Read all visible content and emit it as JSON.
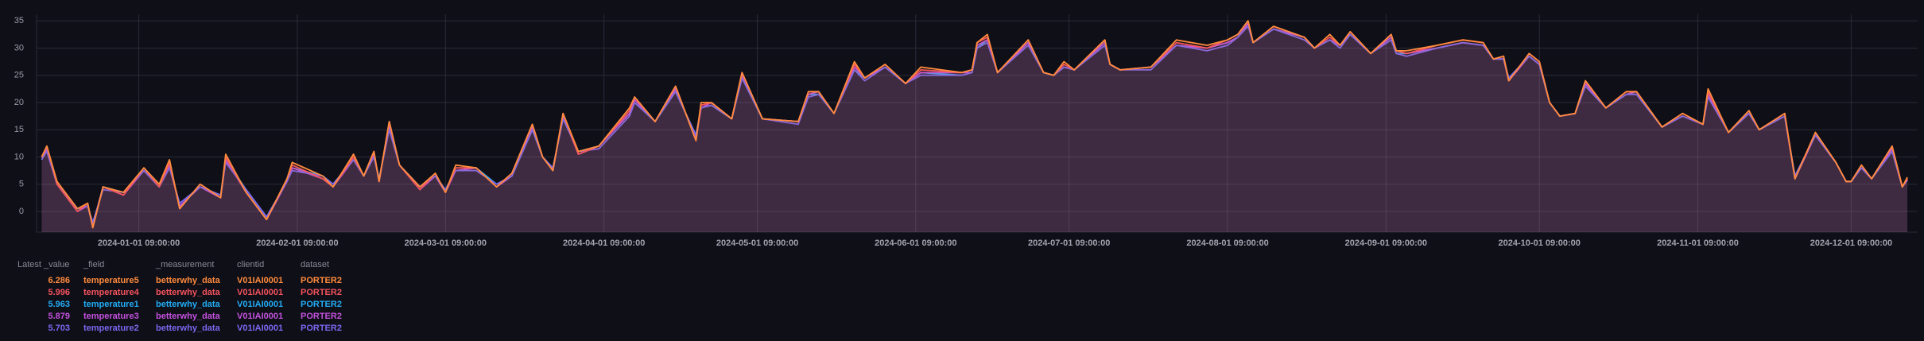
{
  "chart_data": {
    "type": "line",
    "x": [
      "2023-12-13 09:00:00",
      "2023-12-14 09:00:00",
      "2023-12-16 09:00:00",
      "2023-12-20 09:00:00",
      "2023-12-22 09:00:00",
      "2023-12-23 09:00:00",
      "2023-12-25 09:00:00",
      "2023-12-29 09:00:00",
      "2024-01-02 09:00:00",
      "2024-01-05 09:00:00",
      "2024-01-07 09:00:00",
      "2024-01-09 09:00:00",
      "2024-01-13 09:00:00",
      "2024-01-17 09:00:00",
      "2024-01-18 09:00:00",
      "2024-01-22 09:00:00",
      "2024-01-26 09:00:00",
      "2024-01-30 09:00:00",
      "2024-01-31 09:00:00",
      "2024-02-06 09:00:00",
      "2024-02-08 09:00:00",
      "2024-02-12 09:00:00",
      "2024-02-14 09:00:00",
      "2024-02-16 09:00:00",
      "2024-02-17 09:00:00",
      "2024-02-19 09:00:00",
      "2024-02-21 09:00:00",
      "2024-02-25 09:00:00",
      "2024-02-28 09:00:00",
      "2024-03-01 09:00:00",
      "2024-03-03 09:00:00",
      "2024-03-07 09:00:00",
      "2024-03-11 09:00:00",
      "2024-03-14 09:00:00",
      "2024-03-18 09:00:00",
      "2024-03-20 09:00:00",
      "2024-03-22 09:00:00",
      "2024-03-24 09:00:00",
      "2024-03-27 09:00:00",
      "2024-03-31 09:00:00",
      "2024-04-06 09:00:00",
      "2024-04-07 09:00:00",
      "2024-04-11 09:00:00",
      "2024-04-15 09:00:00",
      "2024-04-19 09:00:00",
      "2024-04-20 09:00:00",
      "2024-04-22 09:00:00",
      "2024-04-26 09:00:00",
      "2024-04-28 09:00:00",
      "2024-05-02 09:00:00",
      "2024-05-09 09:00:00",
      "2024-05-11 09:00:00",
      "2024-05-13 09:00:00",
      "2024-05-16 09:00:00",
      "2024-05-20 09:00:00",
      "2024-05-22 09:00:00",
      "2024-05-26 09:00:00",
      "2024-05-30 09:00:00",
      "2024-06-02 09:00:00",
      "2024-06-10 09:00:00",
      "2024-06-12 09:00:00",
      "2024-06-13 09:00:00",
      "2024-06-15 09:00:00",
      "2024-06-17 09:00:00",
      "2024-06-23 09:00:00",
      "2024-06-26 09:00:00",
      "2024-06-28 09:00:00",
      "2024-06-30 09:00:00",
      "2024-07-02 09:00:00",
      "2024-07-08 09:00:00",
      "2024-07-09 09:00:00",
      "2024-07-11 09:00:00",
      "2024-07-17 09:00:00",
      "2024-07-22 09:00:00",
      "2024-07-28 09:00:00",
      "2024-08-01 09:00:00",
      "2024-08-03 09:00:00",
      "2024-08-05 09:00:00",
      "2024-08-06 09:00:00",
      "2024-08-10 09:00:00",
      "2024-08-16 09:00:00",
      "2024-08-18 09:00:00",
      "2024-08-21 09:00:00",
      "2024-08-23 09:00:00",
      "2024-08-25 09:00:00",
      "2024-08-29 09:00:00",
      "2024-09-02 09:00:00",
      "2024-09-03 09:00:00",
      "2024-09-05 09:00:00",
      "2024-09-11 09:00:00",
      "2024-09-16 09:00:00",
      "2024-09-20 09:00:00",
      "2024-09-22 09:00:00",
      "2024-09-24 09:00:00",
      "2024-09-25 09:00:00",
      "2024-09-29 09:00:00",
      "2024-10-01 09:00:00",
      "2024-10-03 09:00:00",
      "2024-10-05 09:00:00",
      "2024-10-08 09:00:00",
      "2024-10-10 09:00:00",
      "2024-10-14 09:00:00",
      "2024-10-18 09:00:00",
      "2024-10-20 09:00:00",
      "2024-10-25 09:00:00",
      "2024-10-29 09:00:00",
      "2024-11-02 09:00:00",
      "2024-11-03 09:00:00",
      "2024-11-07 09:00:00",
      "2024-11-11 09:00:00",
      "2024-11-13 09:00:00",
      "2024-11-18 09:00:00",
      "2024-11-20 09:00:00",
      "2024-11-24 09:00:00",
      "2024-11-28 09:00:00",
      "2024-11-30 09:00:00",
      "2024-12-01 09:00:00",
      "2024-12-03 09:00:00",
      "2024-12-05 09:00:00",
      "2024-12-09 09:00:00",
      "2024-12-11 09:00:00",
      "2024-12-12 09:00:00"
    ],
    "series": [
      {
        "name": "temperature5",
        "color": "#ff8b3d",
        "values": [
          10,
          12,
          5.5,
          0.5,
          1.5,
          -3,
          4.5,
          3.5,
          8,
          5,
          9.5,
          0.5,
          5,
          2.5,
          10.5,
          3.5,
          -1.5,
          6,
          9,
          6.5,
          4.5,
          10.5,
          6.5,
          11,
          5.5,
          16.5,
          8.5,
          4.5,
          7,
          3.5,
          8.5,
          8,
          4.5,
          7,
          16,
          10,
          7.5,
          18,
          11,
          12,
          19,
          21,
          16.5,
          23,
          13,
          20,
          20,
          17,
          25.5,
          17,
          16.5,
          22,
          22,
          18,
          27.5,
          24.5,
          27,
          23.5,
          26.5,
          25.5,
          26,
          31,
          32.5,
          25.5,
          31.5,
          25.5,
          25,
          27.5,
          26,
          31.5,
          27,
          26,
          26.5,
          31.5,
          30.5,
          31.5,
          32.5,
          35,
          31,
          34,
          32,
          30,
          32.5,
          30.5,
          33,
          29,
          32.5,
          29.5,
          29.5,
          30.5,
          31.5,
          31,
          28,
          28.5,
          24,
          29,
          27.5,
          20,
          17.5,
          18,
          24,
          19,
          22,
          22,
          15.5,
          18,
          16,
          22.5,
          14.5,
          18.5,
          15,
          18,
          6,
          14.5,
          9,
          5.5,
          5.5,
          8.5,
          6,
          12,
          4.5,
          6.286
        ]
      },
      {
        "name": "temperature4",
        "color": "#f4525d",
        "values": [
          10,
          12,
          5,
          0,
          1.5,
          -3,
          4.5,
          3,
          8,
          4.5,
          9,
          0.5,
          5,
          2.5,
          10,
          3.5,
          -1.5,
          6,
          8.5,
          6,
          4.5,
          10,
          6.5,
          11,
          5.5,
          16.5,
          8.5,
          4,
          7,
          3.5,
          8,
          8,
          4.5,
          7,
          16,
          10,
          7.5,
          18,
          10.5,
          12,
          18.5,
          21,
          16.5,
          23,
          13,
          19.5,
          20,
          17,
          25.5,
          17,
          16.5,
          22,
          22,
          18,
          27,
          24.5,
          27,
          23.5,
          26,
          25.5,
          26,
          31,
          32,
          25.5,
          31.5,
          25.5,
          25,
          27,
          26,
          31.5,
          27,
          26,
          26.5,
          31,
          30,
          31.5,
          32.5,
          35,
          31,
          34,
          32,
          30,
          32,
          30.5,
          33,
          29,
          32.5,
          29.5,
          29,
          30.5,
          31.5,
          31,
          28,
          28.5,
          24,
          29,
          27.5,
          20,
          17.5,
          18,
          24,
          19,
          22,
          22,
          15.5,
          18,
          16,
          22,
          14.5,
          18.5,
          15,
          18,
          6,
          14.5,
          9,
          5.5,
          5.5,
          8.5,
          6,
          12,
          4.5,
          5.996
        ]
      },
      {
        "name": "temperature1",
        "color": "#22adf6",
        "values": [
          9.5,
          11.5,
          5,
          0.5,
          1,
          -2.5,
          4.5,
          3.5,
          7.5,
          4.5,
          8.5,
          1,
          4.5,
          3,
          9.5,
          4,
          -1,
          5.5,
          8,
          6.5,
          5,
          9.5,
          6.5,
          10.5,
          6,
          15.5,
          8.5,
          4.5,
          6.5,
          4,
          7.5,
          8,
          5,
          6.5,
          15,
          10,
          8,
          17,
          11,
          12,
          18,
          20,
          16.5,
          22,
          14,
          19,
          19.5,
          17,
          24.5,
          17,
          16.5,
          21.5,
          21.5,
          18,
          26,
          24.5,
          26.5,
          23.5,
          25.5,
          25,
          25.5,
          30,
          31.5,
          25.5,
          31,
          25.5,
          25,
          26.5,
          26,
          31,
          27,
          26,
          26.5,
          30.5,
          30,
          31,
          32,
          34.5,
          31,
          33.5,
          32,
          30,
          31.5,
          30.5,
          32.5,
          29,
          32,
          29,
          29,
          30,
          31,
          30.5,
          28,
          28,
          24.5,
          28.5,
          27,
          20,
          17.5,
          18,
          23.5,
          19,
          21.5,
          21.5,
          15.5,
          17.5,
          16,
          21.5,
          14.5,
          18,
          15,
          17.5,
          6.5,
          14,
          9,
          5.5,
          5.5,
          8,
          6,
          11.5,
          4.5,
          5.963
        ]
      },
      {
        "name": "temperature3",
        "color": "#c452e0",
        "values": [
          10,
          11.5,
          5,
          0,
          1,
          -2.5,
          4.5,
          3,
          7.5,
          4.5,
          8.5,
          1,
          4.5,
          2.5,
          9.5,
          3.5,
          -1.5,
          5.5,
          8,
          6,
          4.5,
          9.5,
          6.5,
          10.5,
          5.5,
          16,
          8.5,
          4,
          6.5,
          3.5,
          7.5,
          8,
          4.5,
          6.5,
          15.5,
          10,
          7.5,
          17.5,
          10.5,
          12,
          18,
          20.5,
          16.5,
          22.5,
          13.5,
          19,
          20,
          17,
          25,
          17,
          16.5,
          21.5,
          22,
          18,
          26.5,
          24.5,
          26.5,
          23.5,
          25.5,
          25.5,
          25.5,
          30.5,
          31.5,
          25.5,
          31,
          25.5,
          25,
          26.5,
          26,
          31,
          27,
          26,
          26.5,
          30.5,
          30,
          31,
          32,
          34.5,
          31,
          33.5,
          32,
          30,
          31.5,
          30.5,
          32.5,
          29,
          32,
          29.5,
          29,
          30,
          31,
          30.5,
          28,
          28,
          24,
          28.5,
          27,
          20,
          17.5,
          18,
          23.5,
          19,
          21.5,
          22,
          15.5,
          17.5,
          16,
          21.5,
          14.5,
          18,
          15,
          17.5,
          6,
          14,
          9,
          5.5,
          5.5,
          8,
          6,
          11.5,
          4.5,
          5.879
        ]
      },
      {
        "name": "temperature2",
        "color": "#7a68f0",
        "values": [
          9.5,
          11,
          5,
          0.5,
          1,
          -2,
          4,
          3.5,
          7.5,
          4.5,
          8,
          1.5,
          4.5,
          3,
          9,
          4,
          -1,
          5.5,
          7.5,
          6.5,
          5,
          9.5,
          6.5,
          10,
          6,
          15,
          8.5,
          4.5,
          6.5,
          4,
          7.5,
          7.5,
          5,
          6.5,
          15,
          10,
          8,
          17,
          11,
          11.5,
          17.5,
          20,
          16.5,
          22,
          14,
          19,
          19.5,
          17,
          24.5,
          17,
          16,
          21,
          21.5,
          18,
          26,
          24,
          26.5,
          23.5,
          25,
          25,
          25.5,
          30,
          31,
          25.5,
          30.5,
          25.5,
          25,
          26.5,
          26,
          30.5,
          27,
          26,
          26,
          30.5,
          29.5,
          30.5,
          32,
          34,
          31,
          33.5,
          31.5,
          30,
          31.5,
          30,
          32.5,
          29,
          31.5,
          29,
          28.5,
          30,
          31,
          30.5,
          28,
          28,
          24.5,
          28.5,
          27,
          20,
          17.5,
          18,
          23,
          19,
          21.5,
          21.5,
          15.5,
          17.5,
          16,
          21,
          14.5,
          18,
          15,
          17.5,
          6.5,
          14,
          9,
          5.5,
          5.5,
          8,
          6,
          11,
          4.5,
          5.703
        ]
      }
    ],
    "xlim": [
      "2023-12-12 09:00:00",
      "2024-12-14 09:00:00"
    ],
    "xticks": [
      "2024-01-01 09:00:00",
      "2024-02-01 09:00:00",
      "2024-03-01 09:00:00",
      "2024-04-01 09:00:00",
      "2024-05-01 09:00:00",
      "2024-06-01 09:00:00",
      "2024-07-01 09:00:00",
      "2024-08-01 09:00:00",
      "2024-09-01 09:00:00",
      "2024-10-01 09:00:00",
      "2024-11-01 09:00:00",
      "2024-12-01 09:00:00"
    ],
    "ylim": [
      -3.8,
      36.2
    ],
    "yticks": [
      0,
      5,
      10,
      15,
      20,
      25,
      30,
      35
    ],
    "grid": true
  },
  "table": {
    "columns": [
      "Latest _value",
      "_field",
      "_measurement",
      "clientid",
      "dataset"
    ],
    "rows": [
      {
        "measurement": "betterwhy_data",
        "clientid": "V01IAI0001",
        "dataset": "PORTER2"
      },
      {
        "measurement": "betterwhy_data",
        "clientid": "V01IAI0001",
        "dataset": "PORTER2"
      },
      {
        "measurement": "betterwhy_data",
        "clientid": "V01IAI0001",
        "dataset": "PORTER2"
      },
      {
        "measurement": "betterwhy_data",
        "clientid": "V01IAI0001",
        "dataset": "PORTER2"
      },
      {
        "measurement": "betterwhy_data",
        "clientid": "V01IAI0001",
        "dataset": "PORTER2"
      }
    ]
  }
}
